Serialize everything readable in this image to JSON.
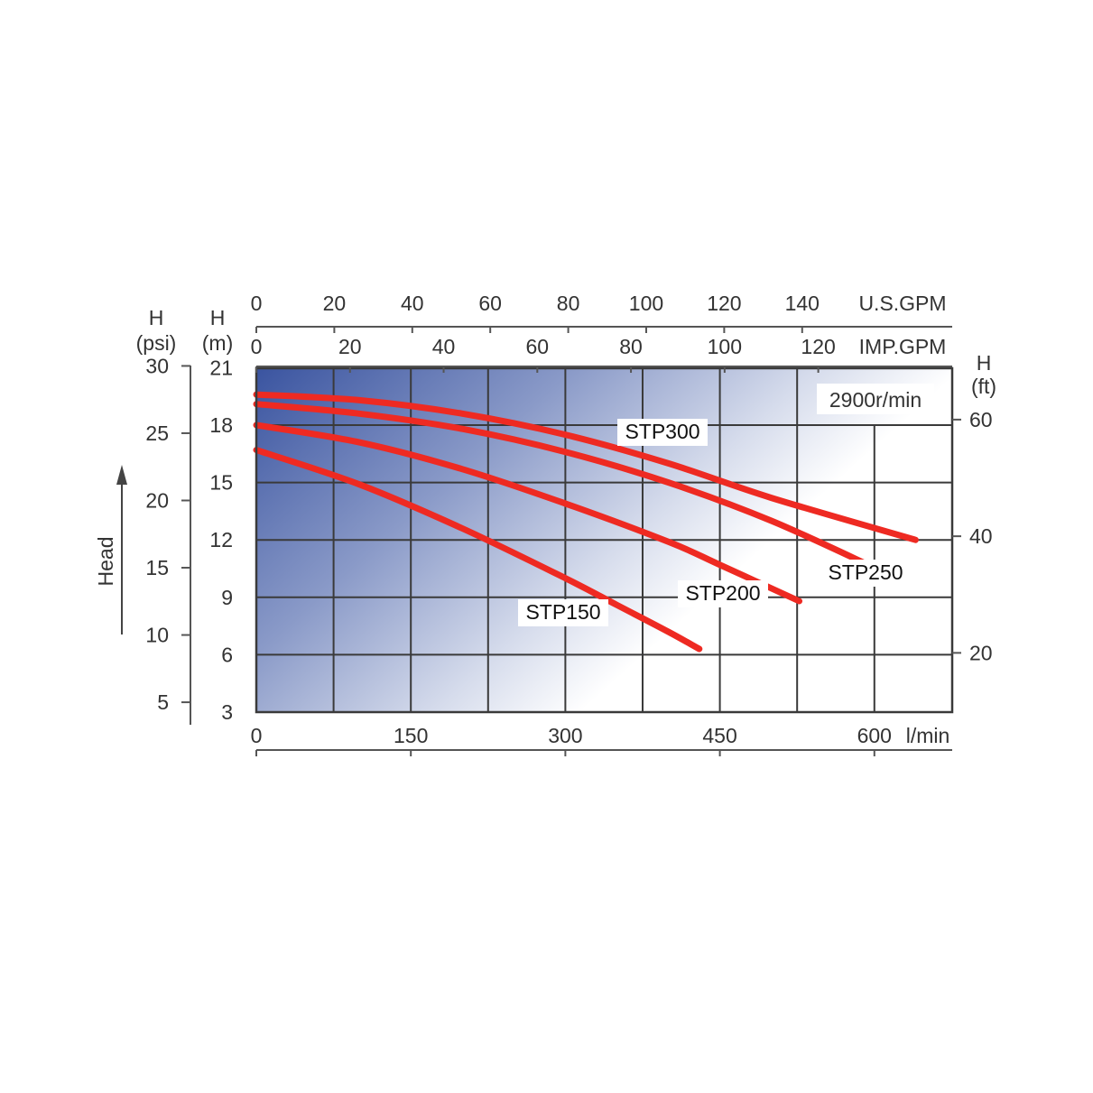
{
  "chart_data": {
    "type": "line",
    "speed_label": "2900r/min",
    "x_axis": {
      "unit": "l/min",
      "range": [
        0,
        675
      ],
      "ticks": [
        0,
        150,
        300,
        450,
        600
      ]
    },
    "top_axes": [
      {
        "unit": "U.S.GPM",
        "ticks": [
          0,
          20,
          40,
          60,
          80,
          100,
          120,
          140
        ],
        "lpm_per_unit": 3.785
      },
      {
        "unit": "IMP.GPM",
        "ticks": [
          0,
          20,
          40,
          60,
          80,
          100,
          120
        ],
        "lpm_per_unit": 4.546
      }
    ],
    "y_axis_m": {
      "header": "H",
      "unit": "(m)",
      "range": [
        3,
        21
      ],
      "ticks": [
        3,
        6,
        9,
        12,
        15,
        18,
        21
      ]
    },
    "y_axis_psi": {
      "header": "H",
      "unit": "(psi)",
      "ticks": [
        5,
        10,
        15,
        20,
        25,
        30
      ],
      "m_per_unit": 0.7031
    },
    "y_axis_ft": {
      "header": "H",
      "unit": "(ft)",
      "ticks": [
        20,
        40,
        60
      ],
      "m_per_unit": 0.3048
    },
    "head_label": "Head",
    "series": [
      {
        "name": "STP300",
        "x": [
          0,
          100,
          200,
          300,
          400,
          500,
          640
        ],
        "y": [
          19.6,
          19.3,
          18.6,
          17.5,
          16.0,
          14.2,
          12.0
        ]
      },
      {
        "name": "STP250",
        "x": [
          0,
          100,
          200,
          300,
          400,
          500,
          602
        ],
        "y": [
          19.1,
          18.6,
          17.8,
          16.6,
          15.0,
          13.0,
          10.5
        ]
      },
      {
        "name": "STP200",
        "x": [
          0,
          100,
          200,
          300,
          400,
          450,
          527
        ],
        "y": [
          18.0,
          17.1,
          15.7,
          13.9,
          11.9,
          10.7,
          8.8
        ]
      },
      {
        "name": "STP150",
        "x": [
          0,
          100,
          200,
          300,
          350,
          400,
          430
        ],
        "y": [
          16.7,
          14.9,
          12.6,
          10.0,
          8.6,
          7.2,
          6.3
        ]
      }
    ],
    "labels": [
      "STP300",
      "STP250",
      "STP200",
      "STP150"
    ]
  }
}
